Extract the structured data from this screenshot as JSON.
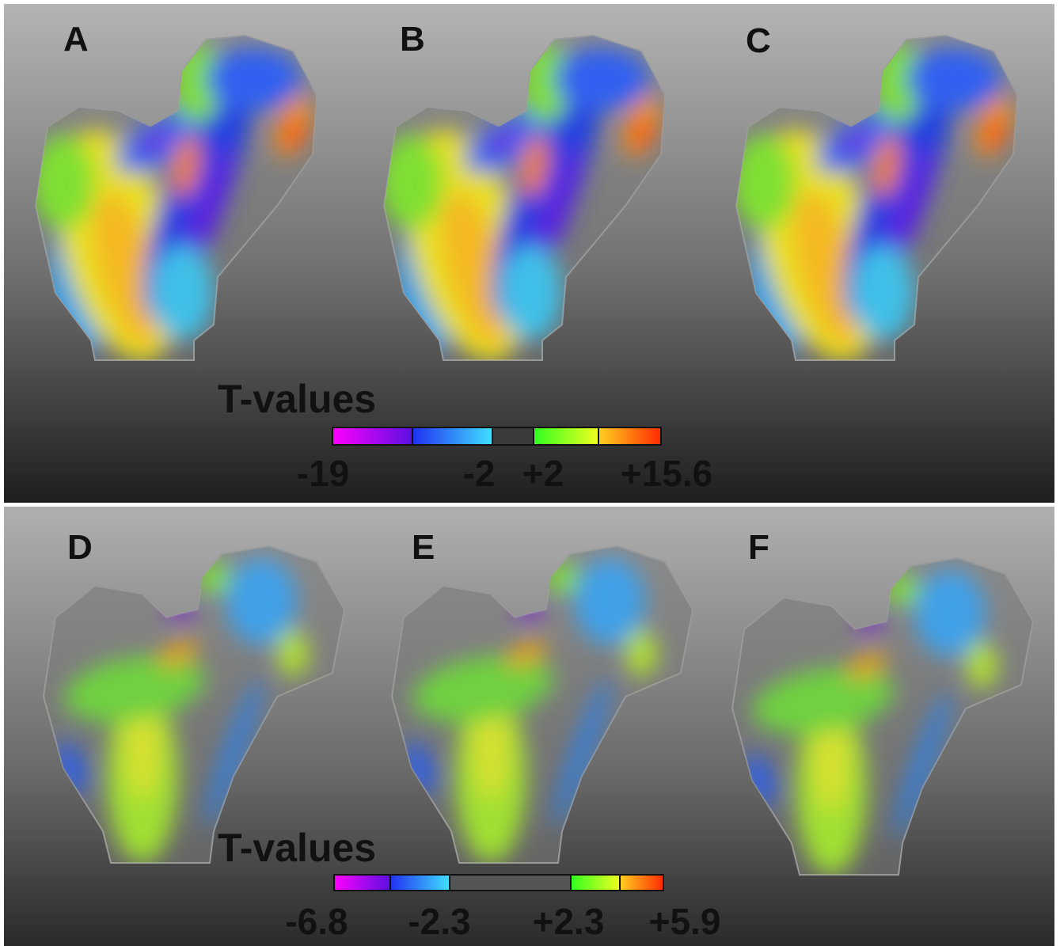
{
  "panels": [
    {
      "label": "A"
    },
    {
      "label": "B"
    },
    {
      "label": "C"
    },
    {
      "label": "D"
    },
    {
      "label": "E"
    },
    {
      "label": "F"
    }
  ],
  "legends": [
    {
      "title": "T-values",
      "ticks": [
        "-19",
        "-2",
        "+2",
        "+15.6"
      ]
    },
    {
      "title": "T-values",
      "ticks": [
        "-6.8",
        "-2.3",
        "+2.3",
        "+5.9"
      ]
    }
  ]
}
